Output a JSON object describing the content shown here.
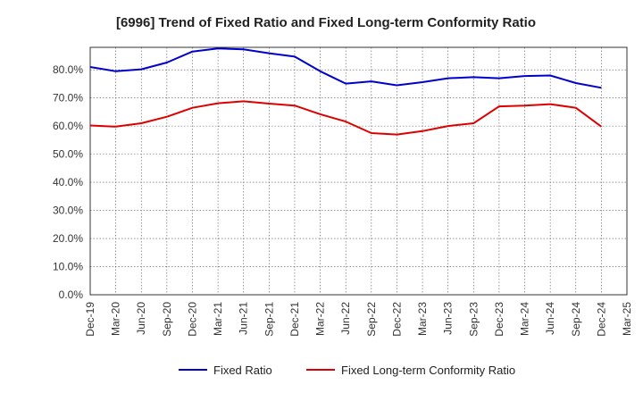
{
  "chart_data": {
    "type": "line",
    "title": "[6996]  Trend of Fixed Ratio and Fixed Long-term Conformity Ratio",
    "xlabel": "",
    "ylabel": "",
    "x": [
      "Dec-19",
      "Mar-20",
      "Jun-20",
      "Sep-20",
      "Dec-20",
      "Mar-21",
      "Jun-21",
      "Sep-21",
      "Dec-21",
      "Mar-22",
      "Jun-22",
      "Sep-22",
      "Dec-22",
      "Mar-23",
      "Jun-23",
      "Sep-23",
      "Dec-23",
      "Mar-24",
      "Jun-24",
      "Sep-24",
      "Dec-24",
      "Mar-25"
    ],
    "y_ticks": [
      "0.0%",
      "10.0%",
      "20.0%",
      "30.0%",
      "40.0%",
      "50.0%",
      "60.0%",
      "70.0%",
      "80.0%"
    ],
    "ylim": [
      0,
      88
    ],
    "grid": true,
    "legend_position": "bottom",
    "series": [
      {
        "name": "Fixed Ratio",
        "color": "#0000cc",
        "values": [
          81.0,
          79.5,
          80.2,
          82.6,
          86.5,
          87.6,
          87.3,
          85.9,
          84.7,
          79.5,
          75.1,
          75.9,
          74.5,
          75.6,
          77.0,
          77.4,
          77.0,
          77.8,
          78.0,
          75.3,
          73.6,
          null
        ]
      },
      {
        "name": "Fixed Long-term Conformity Ratio",
        "color": "#dd0000",
        "values": [
          60.2,
          59.8,
          61.0,
          63.3,
          66.5,
          68.1,
          68.8,
          68.0,
          67.3,
          64.2,
          61.6,
          57.5,
          57.0,
          58.2,
          60.0,
          61.0,
          67.0,
          67.3,
          67.8,
          66.5,
          59.8,
          null
        ]
      }
    ]
  }
}
